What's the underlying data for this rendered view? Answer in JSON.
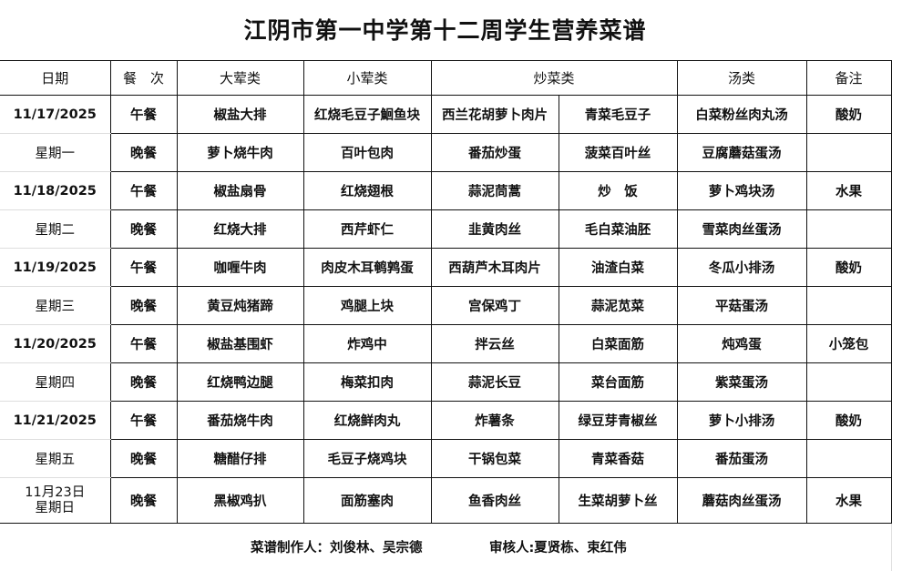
{
  "title": "江阴市第一中学第十二周学生营养菜谱",
  "headers": {
    "date": "日期",
    "meal": "餐　次",
    "big": "大荤类",
    "small": "小荤类",
    "stir": "炒菜类",
    "soup": "汤类",
    "note": "备注"
  },
  "days": [
    {
      "date": "11/17/2025",
      "weekday": "星期一",
      "meals": [
        {
          "meal": "午餐",
          "big": "椒盐大排",
          "small": "红烧毛豆子鮰鱼块",
          "stir1": "西兰花胡萝卜肉片",
          "stir2": "青菜毛豆子",
          "soup": "白菜粉丝肉丸汤",
          "note": "酸奶"
        },
        {
          "meal": "晚餐",
          "big": "萝卜烧牛肉",
          "small": "百叶包肉",
          "stir1": "番茄炒蛋",
          "stir2": "菠菜百叶丝",
          "soup": "豆腐蘑菇蛋汤",
          "note": ""
        }
      ]
    },
    {
      "date": "11/18/2025",
      "weekday": "星期二",
      "meals": [
        {
          "meal": "午餐",
          "big": "椒盐扇骨",
          "small": "红烧翅根",
          "stir1": "蒜泥茼蒿",
          "stir2": "炒　饭",
          "soup": "萝卜鸡块汤",
          "note": "水果"
        },
        {
          "meal": "晚餐",
          "big": "红烧大排",
          "small": "西芹虾仁",
          "stir1": "韭黄肉丝",
          "stir2": "毛白菜油胚",
          "soup": "雪菜肉丝蛋汤",
          "note": ""
        }
      ]
    },
    {
      "date": "11/19/2025",
      "weekday": "星期三",
      "meals": [
        {
          "meal": "午餐",
          "big": "咖喱牛肉",
          "small": "肉皮木耳鹌鹑蛋",
          "stir1": "西葫芦木耳肉片",
          "stir2": "油渣白菜",
          "soup": "冬瓜小排汤",
          "note": "酸奶"
        },
        {
          "meal": "晚餐",
          "big": "黄豆炖猪蹄",
          "small": "鸡腿上块",
          "stir1": "宫保鸡丁",
          "stir2": "蒜泥苋菜",
          "soup": "平菇蛋汤",
          "note": ""
        }
      ]
    },
    {
      "date": "11/20/2025",
      "weekday": "星期四",
      "meals": [
        {
          "meal": "午餐",
          "big": "椒盐基围虾",
          "small": "炸鸡中",
          "stir1": "拌云丝",
          "stir2": "白菜面筋",
          "soup": "炖鸡蛋",
          "note": "小笼包"
        },
        {
          "meal": "晚餐",
          "big": "红烧鸭边腿",
          "small": "梅菜扣肉",
          "stir1": "蒜泥长豆",
          "stir2": "菜台面筋",
          "soup": "紫菜蛋汤",
          "note": ""
        }
      ]
    },
    {
      "date": "11/21/2025",
      "weekday": "星期五",
      "meals": [
        {
          "meal": "午餐",
          "big": "番茄烧牛肉",
          "small": "红烧鲜肉丸",
          "stir1": "炸薯条",
          "stir2": "绿豆芽青椒丝",
          "soup": "萝卜小排汤",
          "note": "酸奶"
        },
        {
          "meal": "晚餐",
          "big": "糖醋仔排",
          "small": "毛豆子烧鸡块",
          "stir1": "干锅包菜",
          "stir2": "青菜香菇",
          "soup": "番茄蛋汤",
          "note": ""
        }
      ]
    }
  ],
  "sunday": {
    "date": "11月23日",
    "weekday": "星期日",
    "meal": "晚餐",
    "big": "黑椒鸡扒",
    "small": "面筋塞肉",
    "stir1": "鱼香肉丝",
    "stir2": "生菜胡萝卜丝",
    "soup": "蘑菇肉丝蛋汤",
    "note": "水果"
  },
  "footer": {
    "makers": "菜谱制作人：刘俊林、吴宗德",
    "reviewers": "审核人:夏贤栋、束红伟"
  }
}
